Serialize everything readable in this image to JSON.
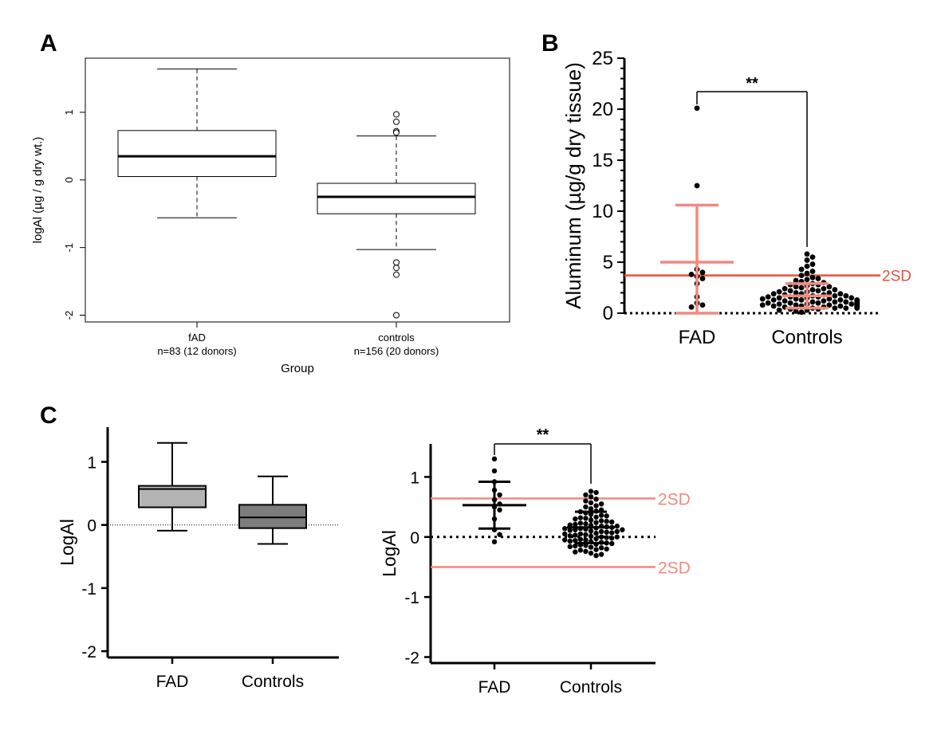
{
  "colors": {
    "black": "#000000",
    "salmon": "#f08a80",
    "red_sd": "#e8503a",
    "fad_box": "#b4b4b4",
    "ctrl_box": "#7d7d7d"
  },
  "chart_data": [
    {
      "type": "box",
      "panel": "A",
      "ylabel": "logAl (µg / g dry wt.)",
      "xlabel": "Group",
      "ylim": [
        -2.1,
        1.8
      ],
      "yticks": [
        -2,
        -1,
        0,
        1
      ],
      "ytick_labels": [
        "-2",
        "-1",
        "0",
        "1"
      ],
      "categories": [
        {
          "label": "fAD",
          "sublabel": "n=83 (12 donors)",
          "q1": 0.05,
          "median": 0.35,
          "q3": 0.73,
          "whisker_low": -0.56,
          "whisker_high": 1.64,
          "outliers": []
        },
        {
          "label": "controls",
          "sublabel": "n=156 (20 donors)",
          "q1": -0.5,
          "median": -0.25,
          "q3": -0.05,
          "whisker_low": -1.03,
          "whisker_high": 0.65,
          "outliers": [
            0.97,
            0.86,
            0.72,
            0.7,
            -1.22,
            -1.3,
            -1.4,
            -2.0
          ]
        }
      ]
    },
    {
      "type": "scatter",
      "panel": "B",
      "ylabel": "Aluminum (µg/g dry tissue)",
      "categories": [
        "FAD",
        "Controls"
      ],
      "ylim": [
        0,
        25
      ],
      "yticks": [
        0,
        5,
        10,
        15,
        20,
        25
      ],
      "ytick_labels": [
        "0",
        "5",
        "10",
        "15",
        "20",
        "25"
      ],
      "reference_line": {
        "value": 3.7,
        "label": "2SD"
      },
      "significance": "**",
      "groups": [
        {
          "name": "FAD",
          "mean": 5.0,
          "sd_low": 0.0,
          "sd_high": 10.6,
          "points": [
            20.1,
            12.5,
            4.3,
            4.0,
            3.8,
            3.6,
            3.4,
            2.9,
            1.6,
            1.0,
            0.8,
            0.6
          ]
        },
        {
          "name": "Controls",
          "mean": 1.7,
          "sd_low": 0.5,
          "sd_high": 2.9,
          "points": [
            5.8,
            5.5,
            5.2,
            4.8,
            4.6,
            4.3,
            4.1,
            3.9,
            3.7,
            3.5,
            3.4,
            3.3,
            3.2,
            3.1,
            3.0,
            2.9,
            2.8,
            2.8,
            2.7,
            2.6,
            2.6,
            2.5,
            2.4,
            2.4,
            2.3,
            2.3,
            2.2,
            2.2,
            2.1,
            2.1,
            2.0,
            2.0,
            1.9,
            1.9,
            1.9,
            1.8,
            1.8,
            1.7,
            1.7,
            1.7,
            1.6,
            1.6,
            1.6,
            1.5,
            1.5,
            1.5,
            1.4,
            1.4,
            1.4,
            1.3,
            1.3,
            1.3,
            1.3,
            1.2,
            1.2,
            1.2,
            1.2,
            1.1,
            1.1,
            1.1,
            1.1,
            1.0,
            1.0,
            1.0,
            1.0,
            1.0,
            0.9,
            0.9,
            0.9,
            0.9,
            0.9,
            0.8,
            0.8,
            0.8,
            0.8,
            0.8,
            0.7,
            0.7,
            0.7,
            0.7,
            0.7,
            0.6,
            0.6,
            0.6,
            0.6,
            0.5,
            0.5,
            0.5,
            0.5,
            0.4,
            0.4,
            0.3,
            0.3,
            0.2,
            0.1
          ]
        }
      ]
    },
    {
      "type": "box",
      "panel": "C",
      "ylabel": "LogAl",
      "categories": [
        "FAD",
        "Controls"
      ],
      "ylim": [
        -2.1,
        1.55
      ],
      "yticks": [
        -2,
        -1,
        0,
        1
      ],
      "ytick_labels": [
        "-2",
        "-1",
        "0",
        "1"
      ],
      "zero_line": true,
      "boxes": [
        {
          "name": "FAD",
          "q1": 0.28,
          "median": 0.57,
          "q3": 0.62,
          "whisker_low": -0.09,
          "whisker_high": 1.3
        },
        {
          "name": "Controls",
          "q1": -0.05,
          "median": 0.12,
          "q3": 0.32,
          "whisker_low": -0.3,
          "whisker_high": 0.77
        }
      ]
    },
    {
      "type": "scatter",
      "panel": "C",
      "ylabel": "LogAl",
      "categories": [
        "FAD",
        "Controls"
      ],
      "ylim": [
        -2.1,
        1.55
      ],
      "yticks": [
        -2,
        -1,
        0,
        1
      ],
      "ytick_labels": [
        "-2",
        "-1",
        "0",
        "1"
      ],
      "zero_line": true,
      "reference_lines": [
        {
          "value": 0.64,
          "label": "2SD"
        },
        {
          "value": -0.5,
          "label": "2SD"
        }
      ],
      "significance": "**",
      "groups": [
        {
          "name": "FAD",
          "mean": 0.53,
          "sd_low": 0.14,
          "sd_high": 0.92,
          "points": [
            1.3,
            1.1,
            0.92,
            0.78,
            0.7,
            0.62,
            0.55,
            0.5,
            0.45,
            0.3,
            0.12,
            0.04,
            -0.08
          ]
        },
        {
          "name": "Controls",
          "mean": 0.16,
          "sd_low": -0.1,
          "sd_high": 0.42,
          "points": [
            0.76,
            0.74,
            0.7,
            0.67,
            0.63,
            0.6,
            0.57,
            0.55,
            0.52,
            0.5,
            0.47,
            0.45,
            0.43,
            0.42,
            0.4,
            0.38,
            0.36,
            0.35,
            0.33,
            0.31,
            0.3,
            0.28,
            0.27,
            0.25,
            0.24,
            0.22,
            0.21,
            0.2,
            0.19,
            0.18,
            0.17,
            0.16,
            0.15,
            0.14,
            0.13,
            0.12,
            0.11,
            0.1,
            0.09,
            0.08,
            0.07,
            0.06,
            0.05,
            0.04,
            0.03,
            0.02,
            0.01,
            0.0,
            -0.01,
            -0.02,
            -0.03,
            -0.04,
            -0.05,
            -0.06,
            -0.07,
            -0.08,
            -0.09,
            -0.1,
            -0.11,
            -0.12,
            -0.13,
            -0.14,
            -0.15,
            -0.16,
            -0.17,
            -0.18,
            -0.2,
            -0.21,
            -0.22,
            -0.24,
            -0.25,
            -0.27,
            -0.29,
            -0.31,
            0.26,
            0.23,
            0.18,
            0.14,
            0.09,
            0.05,
            0.0,
            -0.05,
            0.32,
            0.12
          ]
        }
      ]
    }
  ]
}
